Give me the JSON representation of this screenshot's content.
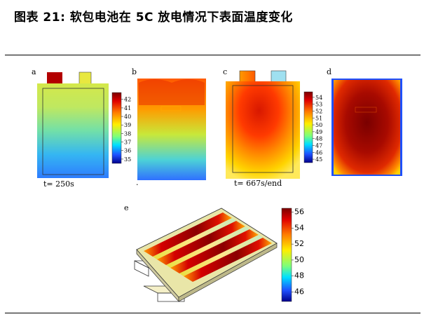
{
  "figure": {
    "title": "图表 21: 软包电池在 5C 放电情况下表面温度变化",
    "panels": [
      {
        "letter": "a",
        "caption": "t= 250s"
      },
      {
        "letter": "b",
        "caption": "."
      },
      {
        "letter": "c",
        "caption": "t= 667s/end"
      },
      {
        "letter": "d",
        "caption": ""
      },
      {
        "letter": "e",
        "caption": ""
      }
    ],
    "colorbar_ab": {
      "ticks": [
        "42",
        "41",
        "40",
        "39",
        "38",
        "37",
        "36",
        "35"
      ],
      "range": [
        34.5,
        42.8
      ]
    },
    "colorbar_cd": {
      "ticks": [
        "54",
        "53",
        "52",
        "51",
        "50",
        "49",
        "48",
        "47",
        "46",
        "45"
      ],
      "range": [
        44.5,
        54.8
      ]
    },
    "colorbar_e": {
      "ticks": [
        "56",
        "54",
        "52",
        "50",
        "48",
        "46"
      ],
      "range": [
        44.8,
        56.5
      ]
    }
  },
  "colors": {
    "jet_dark_red": "#8b0000",
    "jet_red": "#ff1a00",
    "jet_orange": "#ff8c00",
    "jet_yellow": "#ffee00",
    "jet_cyan": "#00e0ff",
    "jet_blue": "#1e50ff",
    "jet_dark_blue": "#00008b"
  }
}
